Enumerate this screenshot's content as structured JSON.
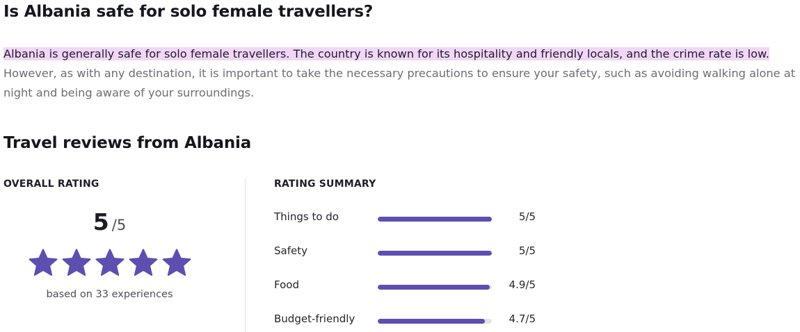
{
  "faq": {
    "question": "Is Albania safe for solo female travellers?",
    "answer_highlight": "Albania is generally safe for solo female travellers. The country is known for its hospitality and friendly locals, and the crime rate is low.",
    "answer_rest": " However, as with any destination, it is important to take the necessary precautions to ensure your safety, such as avoiding walking alone at night and being aware of your surroundings."
  },
  "reviews": {
    "title": "Travel reviews from Albania",
    "overall": {
      "label": "OVERALL RATING",
      "score": "5",
      "max": "/5",
      "stars_filled": 5,
      "stars_total": 5,
      "based_on": "based on 33 experiences"
    },
    "summary": {
      "label": "RATING SUMMARY",
      "items": [
        {
          "label": "Things to do",
          "value": "5/5",
          "score": 5.0
        },
        {
          "label": "Safety",
          "value": "5/5",
          "score": 5.0
        },
        {
          "label": "Food",
          "value": "4.9/5",
          "score": 4.9
        },
        {
          "label": "Budget-friendly",
          "value": "4.7/5",
          "score": 4.7
        }
      ]
    }
  },
  "colors": {
    "accent": "#5c4fb0",
    "highlight": "#f1d6f7",
    "bar_track": "#e3e3e7"
  },
  "icons": {
    "star": "star-icon"
  }
}
